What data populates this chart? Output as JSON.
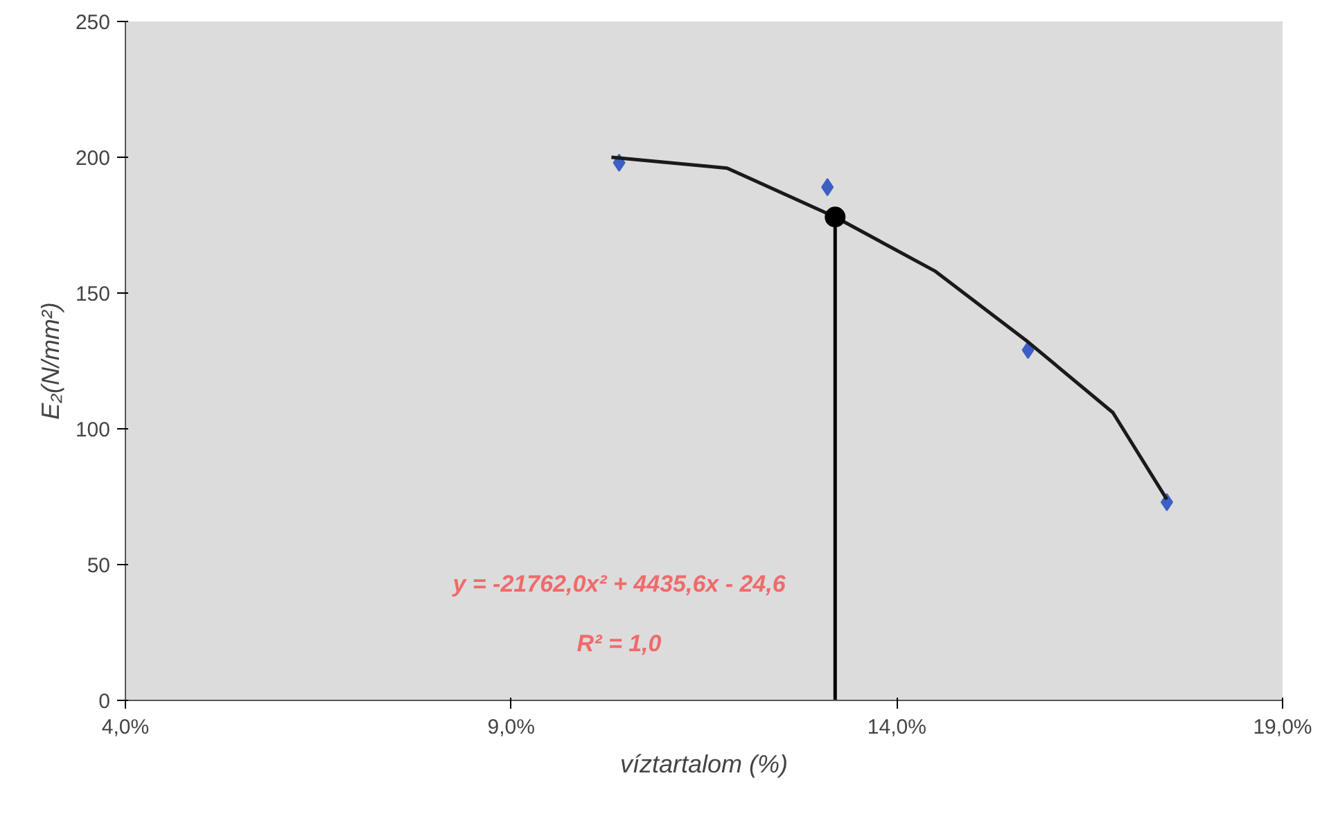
{
  "chart_data": {
    "type": "scatter",
    "xlabel": "víztartalom (%)",
    "ylabel": "E₂(N/mm²)",
    "xlim": [
      4,
      19
    ],
    "ylim": [
      0,
      250
    ],
    "xticks": [
      {
        "value": 4,
        "label": "4,0%"
      },
      {
        "value": 9,
        "label": "9,0%"
      },
      {
        "value": 14,
        "label": "14,0%"
      },
      {
        "value": 19,
        "label": "19,0%"
      }
    ],
    "yticks": [
      0,
      50,
      100,
      150,
      200,
      250
    ],
    "grid": false,
    "series": [
      {
        "marker": "diamond",
        "color": "#3d5fc4",
        "x": [
          10.4,
          13.1,
          15.7,
          17.5
        ],
        "values": [
          198,
          189,
          129,
          73
        ]
      },
      {
        "type": "line",
        "marker": "none",
        "color": "#1a1a1a",
        "x": [
          10.3,
          11.8,
          13.2,
          14.5,
          15.7,
          16.8,
          17.5
        ],
        "values": [
          200,
          196,
          178,
          158,
          132,
          106,
          74
        ]
      },
      {
        "type": "line",
        "marker": "none",
        "color": "#000000",
        "x": [
          13.2,
          13.2
        ],
        "values": [
          0,
          178
        ]
      },
      {
        "type": "scatter",
        "marker": "circle",
        "color": "#000000",
        "x": [
          13.2
        ],
        "values": [
          178
        ]
      }
    ],
    "annotations": [
      "y = -21762,0x² + 4435,6x - 24,6",
      "R² = 1,0"
    ]
  }
}
